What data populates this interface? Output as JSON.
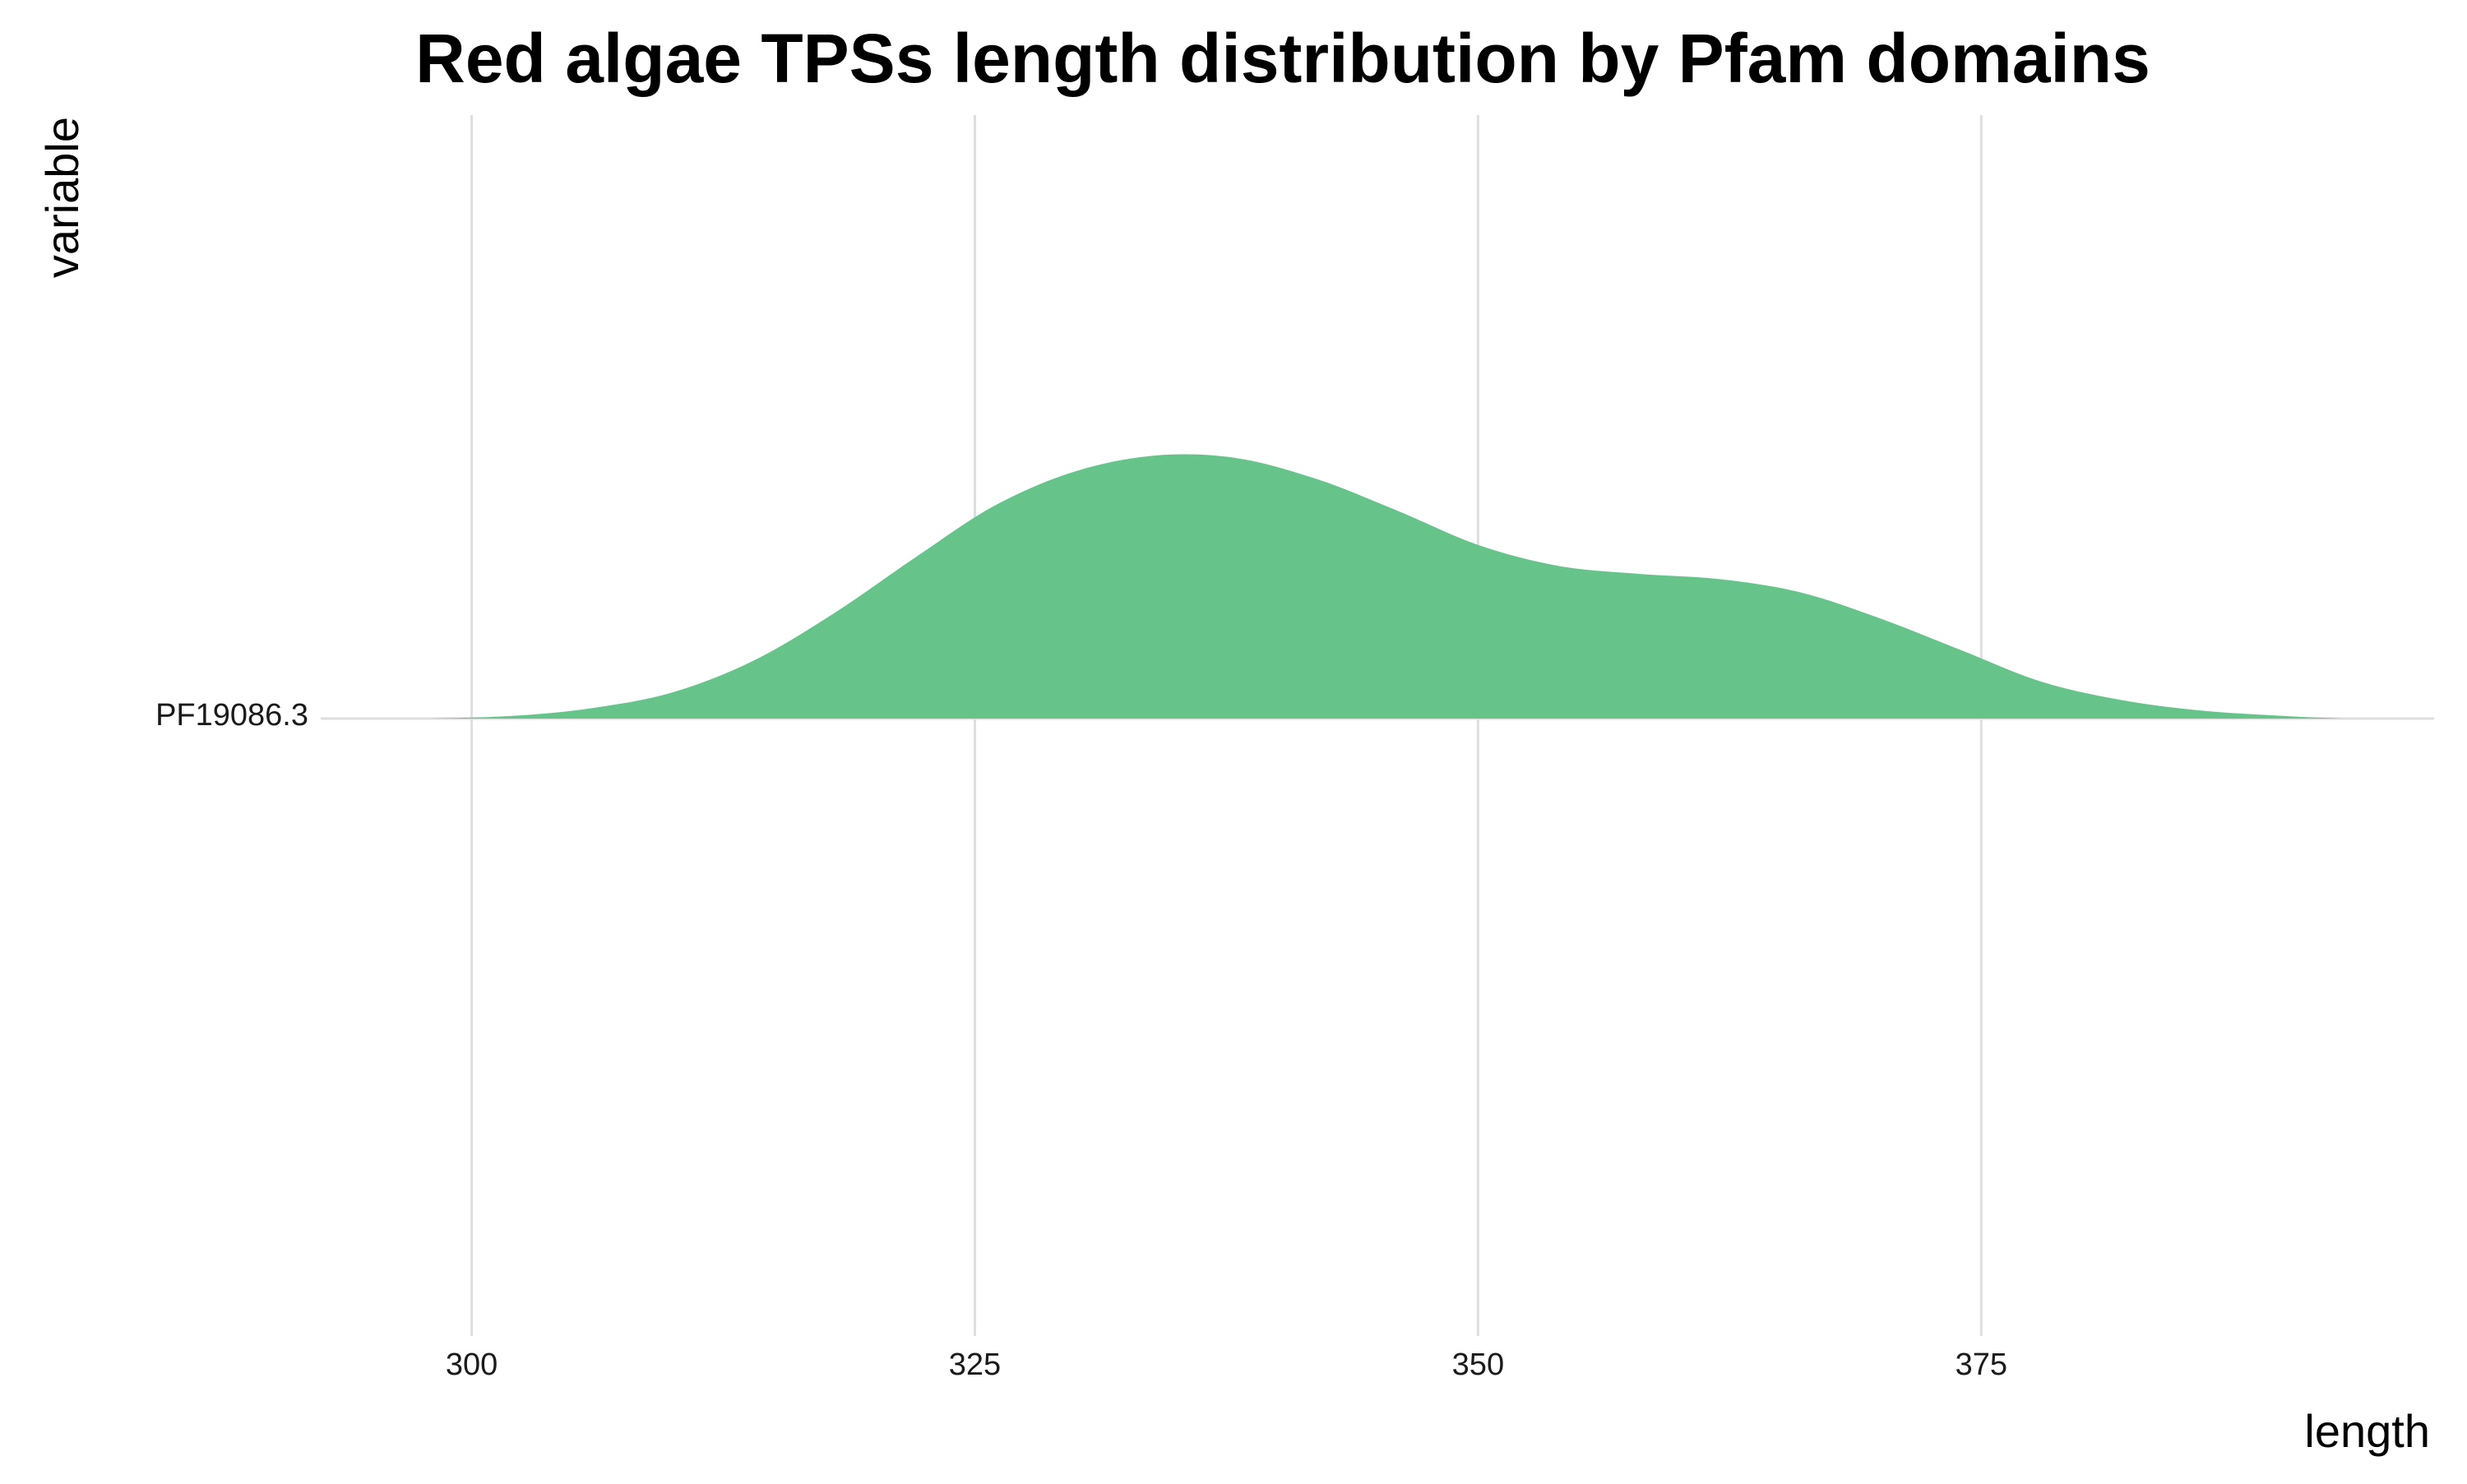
{
  "chart_data": {
    "type": "area",
    "subtype": "ridgeline-density",
    "title": "Red algae TPSs length distribution by Pfam domains",
    "xlabel": "length",
    "ylabel": "variable",
    "xlim": [
      292.5,
      397.5
    ],
    "x_ticks": [
      300,
      325,
      350,
      375
    ],
    "grid": true,
    "legend": "none",
    "categories": [
      "PF19086.3"
    ],
    "series": [
      {
        "name": "PF19086.3",
        "color": "#66c48b",
        "x": [
          298,
          302,
          306,
          310,
          314,
          318,
          322,
          326,
          330,
          334,
          338,
          342,
          346,
          350,
          354,
          358,
          362,
          366,
          370,
          374,
          378,
          382,
          386,
          390,
          393
        ],
        "density": [
          0.0,
          0.01,
          0.04,
          0.1,
          0.22,
          0.4,
          0.61,
          0.81,
          0.94,
          1.0,
          0.99,
          0.91,
          0.79,
          0.66,
          0.58,
          0.55,
          0.53,
          0.48,
          0.38,
          0.26,
          0.14,
          0.07,
          0.03,
          0.01,
          0.0
        ]
      }
    ]
  }
}
